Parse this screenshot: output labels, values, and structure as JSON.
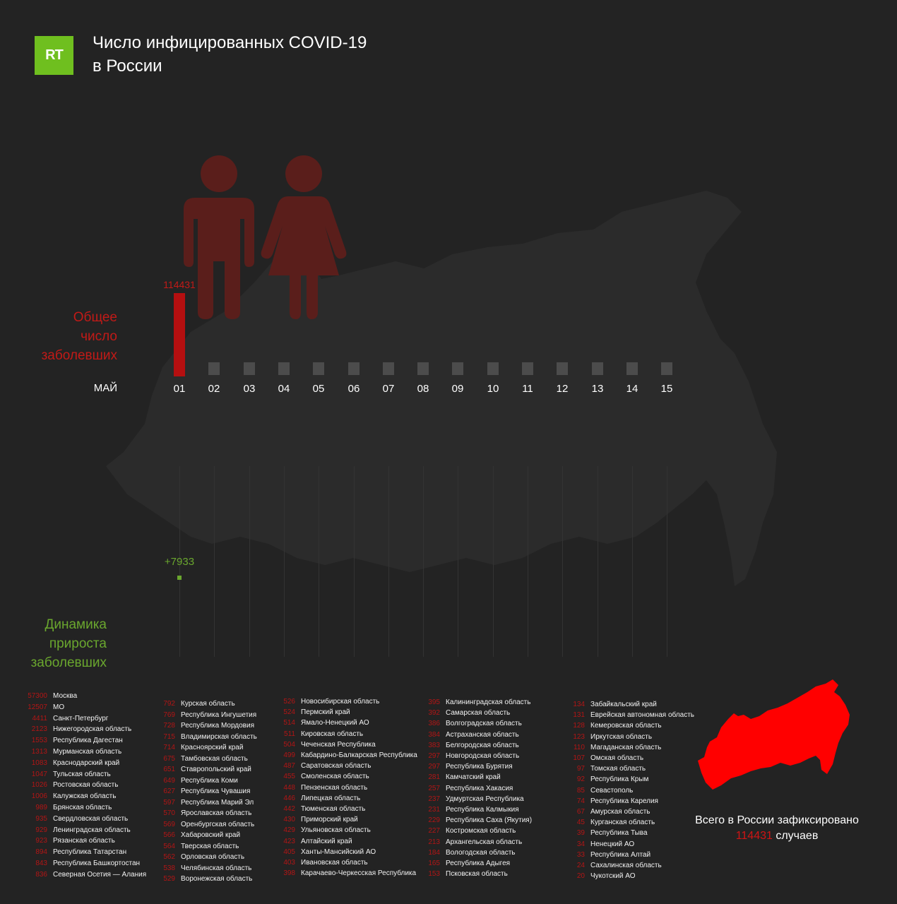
{
  "brand": {
    "logo_text": "RT",
    "logo_color": "#6fbf1f"
  },
  "title": {
    "line1": "Число инфицированных COVID-19",
    "line2": "в России"
  },
  "colors": {
    "accent_red": "#c21a17",
    "accent_green": "#6aa72e",
    "background": "#232323"
  },
  "labels": {
    "total": [
      "Общее",
      "число",
      "заболевших"
    ],
    "dynamics": [
      "Динамика",
      "прироста",
      "заболевших"
    ],
    "month": "МАЙ"
  },
  "chart_data": [
    {
      "type": "bar",
      "title": "Общее число заболевших",
      "xlabel": "МАЙ",
      "categories": [
        "01",
        "02",
        "03",
        "04",
        "05",
        "06",
        "07",
        "08",
        "09",
        "10",
        "11",
        "12",
        "13",
        "14",
        "15"
      ],
      "values": [
        114431,
        null,
        null,
        null,
        null,
        null,
        null,
        null,
        null,
        null,
        null,
        null,
        null,
        null,
        null
      ],
      "value_labels": [
        "114431"
      ]
    },
    {
      "type": "scatter",
      "title": "Динамика прироста заболевших",
      "categories": [
        "01",
        "02",
        "03",
        "04",
        "05",
        "06",
        "07",
        "08",
        "09",
        "10",
        "11",
        "12",
        "13",
        "14",
        "15"
      ],
      "values": [
        7933,
        null,
        null,
        null,
        null,
        null,
        null,
        null,
        null,
        null,
        null,
        null,
        null,
        null,
        null
      ],
      "value_labels": [
        "+7933"
      ]
    }
  ],
  "regions": [
    [
      {
        "n": "57300",
        "name": "Москва"
      },
      {
        "n": "12507",
        "name": "МО"
      },
      {
        "n": "4411",
        "name": "Санкт-Петербург"
      },
      {
        "n": "2123",
        "name": "Нижегородская область"
      },
      {
        "n": "1553",
        "name": "Республика Дагестан"
      },
      {
        "n": "1313",
        "name": "Мурманская область"
      },
      {
        "n": "1083",
        "name": "Краснодарский край"
      },
      {
        "n": "1047",
        "name": "Тульская область"
      },
      {
        "n": "1026",
        "name": "Ростовская область"
      },
      {
        "n": "1006",
        "name": "Калужская область"
      },
      {
        "n": "989",
        "name": "Брянская область"
      },
      {
        "n": "935",
        "name": "Свердловская область"
      },
      {
        "n": "929",
        "name": "Ленинградская область"
      },
      {
        "n": "923",
        "name": "Рязанская область"
      },
      {
        "n": "894",
        "name": "Республика Татарстан"
      },
      {
        "n": "843",
        "name": "Республика Башкортостан"
      },
      {
        "n": "836",
        "name": "Северная Осетия — Алания"
      }
    ],
    [
      {
        "n": "792",
        "name": "Курская область"
      },
      {
        "n": "769",
        "name": "Республика Ингушетия"
      },
      {
        "n": "728",
        "name": "Республика Мордовия"
      },
      {
        "n": "715",
        "name": "Владимирская область"
      },
      {
        "n": "714",
        "name": "Красноярский край"
      },
      {
        "n": "675",
        "name": "Тамбовская область"
      },
      {
        "n": "651",
        "name": "Ставропольский край"
      },
      {
        "n": "649",
        "name": "Республика Коми"
      },
      {
        "n": "627",
        "name": "Республика Чувашия"
      },
      {
        "n": "597",
        "name": "Республика Марий Эл"
      },
      {
        "n": "570",
        "name": "Ярославская область"
      },
      {
        "n": "569",
        "name": "Оренбургская область"
      },
      {
        "n": "566",
        "name": "Хабаровский край"
      },
      {
        "n": "564",
        "name": "Тверская область"
      },
      {
        "n": "562",
        "name": "Орловская область"
      },
      {
        "n": "538",
        "name": "Челябинская область"
      },
      {
        "n": "529",
        "name": "Воронежская область"
      }
    ],
    [
      {
        "n": "526",
        "name": "Новосибирская область"
      },
      {
        "n": "524",
        "name": "Пермский край"
      },
      {
        "n": "514",
        "name": "Ямало-Ненецкий АО"
      },
      {
        "n": "511",
        "name": "Кировская область"
      },
      {
        "n": "504",
        "name": "Чеченская Республика"
      },
      {
        "n": "499",
        "name": "Кабардино-Балкарская Республика"
      },
      {
        "n": "487",
        "name": "Саратовская область"
      },
      {
        "n": "455",
        "name": "Смоленская область"
      },
      {
        "n": "448",
        "name": "Пензенская область"
      },
      {
        "n": "446",
        "name": "Липецкая область"
      },
      {
        "n": "442",
        "name": "Тюменская область"
      },
      {
        "n": "430",
        "name": "Приморский край"
      },
      {
        "n": "429",
        "name": "Ульяновская область"
      },
      {
        "n": "423",
        "name": "Алтайский край"
      },
      {
        "n": "405",
        "name": "Ханты-Мансийский АО"
      },
      {
        "n": "403",
        "name": "Ивановская область"
      },
      {
        "n": "398",
        "name": "Карачаево-Черкесская Республика"
      }
    ],
    [
      {
        "n": "395",
        "name": "Калининградская область"
      },
      {
        "n": "392",
        "name": "Самарская область"
      },
      {
        "n": "386",
        "name": "Волгоградская область"
      },
      {
        "n": "384",
        "name": "Астраханская область"
      },
      {
        "n": "383",
        "name": "Белгородская область"
      },
      {
        "n": "297",
        "name": "Новгородская область"
      },
      {
        "n": "297",
        "name": "Республика Бурятия"
      },
      {
        "n": "281",
        "name": "Камчатский край"
      },
      {
        "n": "257",
        "name": "Республика Хакасия"
      },
      {
        "n": "237",
        "name": "Удмуртская Республика"
      },
      {
        "n": "231",
        "name": "Республика Калмыкия"
      },
      {
        "n": "229",
        "name": "Республика Саха (Якутия)"
      },
      {
        "n": "227",
        "name": "Костромская область"
      },
      {
        "n": "213",
        "name": "Архангельская область"
      },
      {
        "n": "184",
        "name": "Вологодская область"
      },
      {
        "n": "165",
        "name": "Республика Адыгея"
      },
      {
        "n": "153",
        "name": "Псковская область"
      }
    ],
    [
      {
        "n": "134",
        "name": "Забайкальский край"
      },
      {
        "n": "131",
        "name": "Еврейская автономная область"
      },
      {
        "n": "128",
        "name": "Кемеровская область"
      },
      {
        "n": "123",
        "name": "Иркутская область"
      },
      {
        "n": "110",
        "name": "Магаданская область"
      },
      {
        "n": "107",
        "name": "Омская область"
      },
      {
        "n": "97",
        "name": "Томская область"
      },
      {
        "n": "92",
        "name": "Республика Крым"
      },
      {
        "n": "85",
        "name": "Севастополь"
      },
      {
        "n": "74",
        "name": "Республика Карелия"
      },
      {
        "n": "67",
        "name": "Амурская область"
      },
      {
        "n": "45",
        "name": "Курганская область"
      },
      {
        "n": "39",
        "name": "Республика Тыва"
      },
      {
        "n": "34",
        "name": "Ненецкий АО"
      },
      {
        "n": "33",
        "name": "Республика Алтай"
      },
      {
        "n": "24",
        "name": "Сахалинская область"
      },
      {
        "n": "20",
        "name": "Чукотский АО"
      }
    ]
  ],
  "summary": {
    "line1": "Всего в России зафиксировано",
    "number": "114431",
    "suffix": "случаев"
  }
}
